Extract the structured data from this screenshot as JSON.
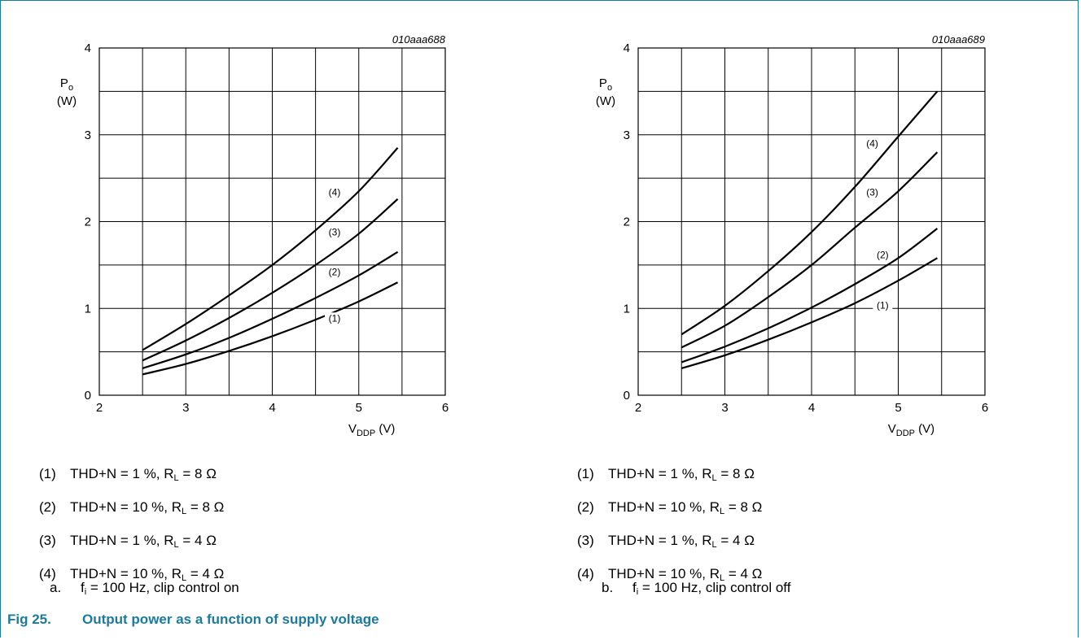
{
  "figure": {
    "number": "Fig 25.",
    "title": "Output power as a function of supply voltage"
  },
  "accent_color": "#1a7aa0",
  "legend_items": [
    {
      "num": "(1)",
      "thd": "THD+N  = 1 %, R",
      "sub": "L",
      "rest": " = 8 Ω"
    },
    {
      "num": "(2)",
      "thd": "THD+N  = 10 %, R",
      "sub": "L",
      "rest": " = 8 Ω"
    },
    {
      "num": "(3)",
      "thd": "THD+N  = 1 %, R",
      "sub": "L",
      "rest": " = 4 Ω"
    },
    {
      "num": "(4)",
      "thd": "THD+N  = 10 %, R",
      "sub": "L",
      "rest": " = 4 Ω"
    }
  ],
  "chart_data": [
    {
      "type": "line",
      "code": "010aaa688",
      "caption_letter": "a.",
      "caption": {
        "f": "f",
        "sub": "i",
        "rest": " = 100 Hz, clip control on"
      },
      "ylabel": {
        "main": "P",
        "sub": "o",
        "unit": "(W)"
      },
      "xlabel": {
        "main": "V",
        "sub": "DDP",
        "unit": " (V)"
      },
      "xlim": [
        2,
        6
      ],
      "ylim": [
        0,
        4
      ],
      "xticks": [
        "2",
        "3",
        "4",
        "5",
        "6"
      ],
      "yticks": [
        "0",
        "1",
        "2",
        "3",
        "4"
      ],
      "grid": true,
      "series": [
        {
          "name": "(1)",
          "x": [
            2.5,
            3,
            3.5,
            4,
            4.5,
            5,
            5.45
          ],
          "y": [
            0.24,
            0.36,
            0.51,
            0.68,
            0.87,
            1.08,
            1.3
          ],
          "label_at": [
            4.72,
            0.85
          ]
        },
        {
          "name": "(2)",
          "x": [
            2.5,
            3,
            3.5,
            4,
            4.5,
            5,
            5.45
          ],
          "y": [
            0.31,
            0.47,
            0.66,
            0.88,
            1.12,
            1.38,
            1.65
          ],
          "label_at": [
            4.72,
            1.38
          ]
        },
        {
          "name": "(3)",
          "x": [
            2.5,
            3,
            3.5,
            4,
            4.5,
            5,
            5.45
          ],
          "y": [
            0.4,
            0.63,
            0.89,
            1.18,
            1.5,
            1.86,
            2.26
          ],
          "label_at": [
            4.72,
            1.84
          ]
        },
        {
          "name": "(4)",
          "x": [
            2.5,
            3,
            3.5,
            4,
            4.5,
            5,
            5.45
          ],
          "y": [
            0.52,
            0.82,
            1.15,
            1.5,
            1.9,
            2.35,
            2.85
          ],
          "label_at": [
            4.72,
            2.3
          ]
        }
      ]
    },
    {
      "type": "line",
      "code": "010aaa689",
      "caption_letter": "b.",
      "caption": {
        "f": "f",
        "sub": "i",
        "rest": " = 100 Hz, clip control off"
      },
      "ylabel": {
        "main": "P",
        "sub": "o",
        "unit": "(W)"
      },
      "xlabel": {
        "main": "V",
        "sub": "DDP",
        "unit": " (V)"
      },
      "xlim": [
        2,
        6
      ],
      "ylim": [
        0,
        4
      ],
      "xticks": [
        "2",
        "3",
        "4",
        "5",
        "6"
      ],
      "yticks": [
        "0",
        "1",
        "2",
        "3",
        "4"
      ],
      "grid": true,
      "series": [
        {
          "name": "(1)",
          "x": [
            2.5,
            3,
            3.5,
            4,
            4.5,
            5,
            5.45
          ],
          "y": [
            0.31,
            0.46,
            0.64,
            0.84,
            1.06,
            1.32,
            1.58
          ],
          "label_at": [
            4.82,
            1.0
          ]
        },
        {
          "name": "(2)",
          "x": [
            2.5,
            3,
            3.5,
            4,
            4.5,
            5,
            5.45
          ],
          "y": [
            0.38,
            0.56,
            0.77,
            1.01,
            1.28,
            1.58,
            1.92
          ],
          "label_at": [
            4.82,
            1.58
          ]
        },
        {
          "name": "(3)",
          "x": [
            2.5,
            3,
            3.5,
            4,
            4.5,
            5,
            5.45
          ],
          "y": [
            0.55,
            0.8,
            1.13,
            1.5,
            1.93,
            2.35,
            2.8
          ],
          "label_at": [
            4.7,
            2.3
          ]
        },
        {
          "name": "(4)",
          "x": [
            2.5,
            3,
            3.5,
            4,
            4.5,
            5,
            5.45
          ],
          "y": [
            0.7,
            1.03,
            1.43,
            1.88,
            2.4,
            2.98,
            3.5
          ],
          "label_at": [
            4.7,
            2.86
          ]
        }
      ]
    }
  ]
}
